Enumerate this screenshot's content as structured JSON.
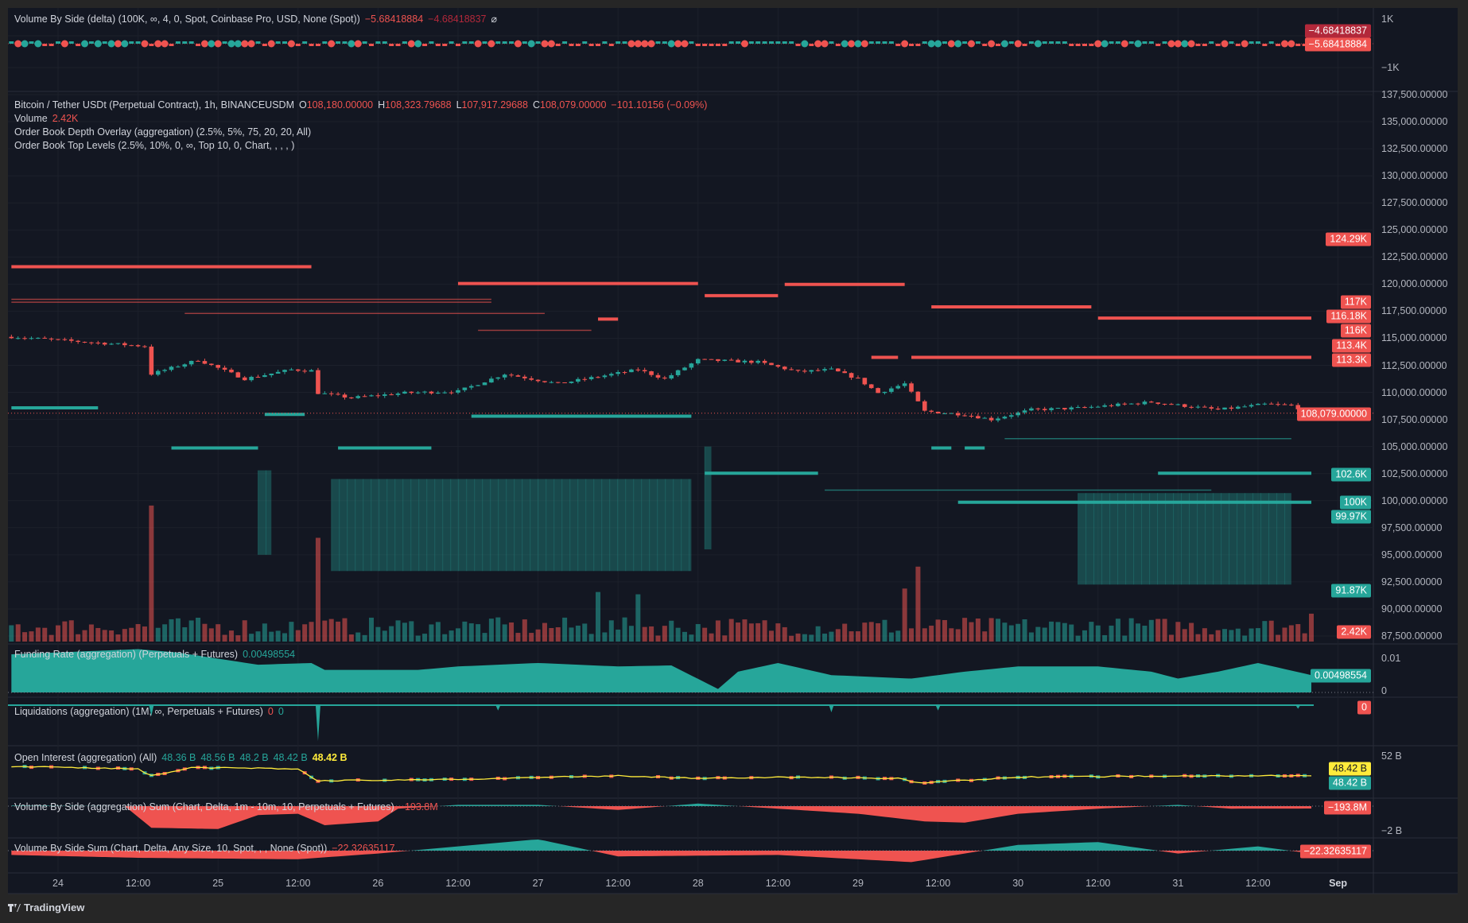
{
  "colors": {
    "up": "#26a69a",
    "down": "#ef5350",
    "dark_red": "#b2283a",
    "yellow": "#ffeb3b",
    "bg": "#131722",
    "frame": "#262626"
  },
  "top_pane": {
    "title": "Volume By Side (delta) (100K, ∞, 4, 0, Spot, Coinbase Pro, USD, None (Spot))",
    "value1": "−5.68418884",
    "value2": "−4.68418837",
    "icon": "empty-set-icon",
    "icon_glyph": "⌀",
    "axis": [
      "1K",
      "−1K"
    ],
    "badges": [
      "−4.68418837",
      "−5.68418884"
    ]
  },
  "main": {
    "symbol": "Bitcoin / Tether USDt (Perpetual Contract), 1h, BINANCEUSDM",
    "o_label": "O",
    "o": "108,180.00000",
    "h_label": "H",
    "h": "108,323.79688",
    "l_label": "L",
    "l": "107,917.29688",
    "c_label": "C",
    "c": "108,079.00000",
    "change": "−101.10156 (−0.09%)",
    "volume_label": "Volume",
    "volume": "2.42K",
    "indicators": [
      "Order Book Depth Overlay (aggregation) (2.5%, 5%, 75, 20, 20, All)",
      "Order Book Top Levels (2.5%, 10%, 0, ∞, Top 10, 0, Chart, , , , )"
    ],
    "price_axis": [
      "137,500.00000",
      "135,000.00000",
      "132,500.00000",
      "130,000.00000",
      "127,500.00000",
      "125,000.00000",
      "122,500.00000",
      "120,000.00000",
      "117,500.00000",
      "115,000.00000",
      "112,500.00000",
      "110,000.00000",
      "107,500.00000",
      "105,000.00000",
      "102,500.00000",
      "100,000.00000",
      "97,500.00000",
      "95,000.00000",
      "92,500.00000",
      "90,000.00000",
      "87,500.00000"
    ],
    "badges_red": [
      "124.29K",
      "117K",
      "116.18K",
      "116K",
      "113.4K",
      "113.3K"
    ],
    "last_price": "108,079.00000",
    "badges_teal": [
      "102.6K",
      "100K",
      "99.97K",
      "91.87K"
    ],
    "volume_badge": "2.42K",
    "price_path": [
      [
        "23 17:00",
        115130
      ],
      [
        "24 13:00",
        114270
      ],
      [
        "24 14:00",
        111700
      ],
      [
        "24 21:00",
        113000
      ],
      [
        "25 04:00",
        111250
      ],
      [
        "25 11:00",
        112100
      ],
      [
        "25 14:00",
        112000
      ],
      [
        "25 15:00",
        109950
      ],
      [
        "25 20:00",
        109500
      ],
      [
        "26 04:00",
        109950
      ],
      [
        "26 12:00",
        110100
      ],
      [
        "26 19:00",
        111700
      ],
      [
        "27 03:00",
        110800
      ],
      [
        "27 15:00",
        112100
      ],
      [
        "27 19:00",
        111250
      ],
      [
        "28 00:00",
        113000
      ],
      [
        "28 09:00",
        112800
      ],
      [
        "28 15:00",
        111900
      ],
      [
        "28 20:00",
        112100
      ],
      [
        "29 00:00",
        111250
      ],
      [
        "29 03:00",
        109950
      ],
      [
        "29 07:00",
        110800
      ],
      [
        "29 10:00",
        108250
      ],
      [
        "29 16:00",
        107950
      ],
      [
        "29 20:00",
        107500
      ],
      [
        "30 02:00",
        108400
      ],
      [
        "30 09:00",
        108550
      ],
      [
        "30 20:00",
        109100
      ],
      [
        "31 06:00",
        108400
      ],
      [
        "31 13:00",
        108900
      ],
      [
        "31 17:00",
        108800
      ],
      [
        "31 20:00",
        108079
      ]
    ],
    "last_candle": {
      "open": 108180,
      "high": 108323.79688,
      "low": 107917.29688,
      "close": 108079
    },
    "volume_spikes_k": [
      [
        "24 14:00",
        11.8,
        "down"
      ],
      [
        "25 15:00",
        9.0,
        "down"
      ],
      [
        "27 09:00",
        4.3,
        "up"
      ],
      [
        "27 15:00",
        4.1,
        "up"
      ],
      [
        "29 07:00",
        4.6,
        "down"
      ],
      [
        "29 09:00",
        6.5,
        "down"
      ],
      [
        "31 20:00",
        2.42,
        "down"
      ]
    ],
    "order_levels": [
      {
        "side": "ask",
        "weight": "major",
        "price": 121600,
        "from": "23 17:00",
        "to": "25 14:00"
      },
      {
        "side": "ask",
        "weight": "major",
        "price": 120050,
        "from": "26 12:00",
        "to": "28 00:00"
      },
      {
        "side": "ask",
        "weight": "major",
        "price": 118930,
        "from": "28 01:00",
        "to": "28 12:00"
      },
      {
        "side": "ask",
        "weight": "major",
        "price": 119970,
        "from": "28 13:00",
        "to": "29 07:00"
      },
      {
        "side": "ask",
        "weight": "major",
        "price": 117900,
        "from": "29 11:00",
        "to": "30 11:00"
      },
      {
        "side": "ask",
        "weight": "major",
        "price": 116860,
        "from": "30 12:00",
        "to": "31 20:00"
      },
      {
        "side": "ask",
        "weight": "major",
        "price": 113230,
        "from": "29 08:00",
        "to": "31 20:00"
      },
      {
        "side": "ask",
        "weight": "major",
        "price": 113230,
        "from": "29 02:00",
        "to": "29 06:00"
      },
      {
        "side": "ask",
        "weight": "major",
        "price": 116770,
        "from": "27 09:00",
        "to": "27 12:00"
      },
      {
        "side": "ask",
        "weight": "minor",
        "price": 118590,
        "from": "23 17:00",
        "to": "26 17:00"
      },
      {
        "side": "ask",
        "weight": "minor",
        "price": 118330,
        "from": "23 17:00",
        "to": "26 17:00"
      },
      {
        "side": "ask",
        "weight": "minor",
        "price": 117290,
        "from": "24 19:00",
        "to": "27 01:00"
      },
      {
        "side": "ask",
        "weight": "minor",
        "price": 115730,
        "from": "26 15:00",
        "to": "27 08:00"
      },
      {
        "side": "bid",
        "weight": "major",
        "price": 108570,
        "from": "23 17:00",
        "to": "24 06:00"
      },
      {
        "side": "bid",
        "weight": "major",
        "price": 107970,
        "from": "25 07:00",
        "to": "25 13:00"
      },
      {
        "side": "bid",
        "weight": "major",
        "price": 107800,
        "from": "26 14:00",
        "to": "27 23:00"
      },
      {
        "side": "bid",
        "weight": "major",
        "price": 104860,
        "from": "24 17:00",
        "to": "25 06:00"
      },
      {
        "side": "bid",
        "weight": "major",
        "price": 104860,
        "from": "25 18:00",
        "to": "26 08:00"
      },
      {
        "side": "bid",
        "weight": "major",
        "price": 104860,
        "from": "29 11:00",
        "to": "29 14:00"
      },
      {
        "side": "bid",
        "weight": "major",
        "price": 104860,
        "from": "29 16:00",
        "to": "29 19:00"
      },
      {
        "side": "bid",
        "weight": "major",
        "price": 102530,
        "from": "28 01:00",
        "to": "28 18:00"
      },
      {
        "side": "bid",
        "weight": "major",
        "price": 102530,
        "from": "30 21:00",
        "to": "31 20:00"
      },
      {
        "side": "bid",
        "weight": "major",
        "price": 99850,
        "from": "29 15:00",
        "to": "31 20:00"
      },
      {
        "side": "bid",
        "weight": "minor",
        "price": 100970,
        "from": "28 19:00",
        "to": "31 05:00"
      },
      {
        "side": "bid",
        "weight": "minor",
        "price": 105730,
        "from": "29 22:00",
        "to": "31 17:00"
      }
    ],
    "depth_zones": [
      {
        "from": "25 17:00",
        "to": "27 23:00",
        "top": 102000,
        "bottom": 93500
      },
      {
        "from": "25 06:00",
        "to": "25 08:00",
        "top": 102800,
        "bottom": 95000
      },
      {
        "from": "28 01:00",
        "to": "28 02:00",
        "top": 105000,
        "bottom": 95500
      },
      {
        "from": "30 09:00",
        "to": "31 17:00",
        "top": 100700,
        "bottom": 92250
      }
    ]
  },
  "funding": {
    "title": "Funding Rate (aggregation) (Perpetuals + Futures)",
    "value": "0.00498554",
    "axis": [
      "0.01",
      "0"
    ],
    "badge": "0.00498554",
    "path": [
      [
        "23 17:00",
        0.011
      ],
      [
        "24 12:00",
        0.0125
      ],
      [
        "24 18:00",
        0.0115
      ],
      [
        "25 06:00",
        0.008
      ],
      [
        "25 14:00",
        0.0085
      ],
      [
        "25 16:00",
        0.0065
      ],
      [
        "26 06:00",
        0.0065
      ],
      [
        "26 12:00",
        0.0075
      ],
      [
        "27 00:00",
        0.0085
      ],
      [
        "27 12:00",
        0.0075
      ],
      [
        "27 20:00",
        0.0078
      ],
      [
        "28 03:00",
        0.001
      ],
      [
        "28 06:00",
        0.006
      ],
      [
        "28 12:00",
        0.0085
      ],
      [
        "28 20:00",
        0.005
      ],
      [
        "29 08:00",
        0.004
      ],
      [
        "29 16:00",
        0.006
      ],
      [
        "30 00:00",
        0.0075
      ],
      [
        "30 12:00",
        0.0075
      ],
      [
        "30 20:00",
        0.006
      ],
      [
        "31 00:00",
        0.004
      ],
      [
        "31 06:00",
        0.006
      ],
      [
        "31 12:00",
        0.0085
      ],
      [
        "31 20:00",
        0.005
      ]
    ]
  },
  "liquidations": {
    "title": "Liquidations (aggregation) (1M, ∞, Perpetuals + Futures)",
    "value_long": "0",
    "value_short": "0",
    "badge": "0",
    "spikes": [
      [
        "24 14:00",
        0.3
      ],
      [
        "25 15:00",
        1.0
      ],
      [
        "26 18:00",
        0.15
      ],
      [
        "28 20:00",
        0.2
      ],
      [
        "29 12:00",
        0.15
      ],
      [
        "31 18:00",
        0.1
      ]
    ]
  },
  "open_interest": {
    "title": "Open Interest (aggregation) (All)",
    "values": [
      "48.36 B",
      "48.56 B",
      "48.2 B",
      "48.42 B"
    ],
    "close": "48.42 B",
    "axis": [
      "52 B"
    ],
    "badge_yellow": "48.42 B",
    "badge_teal": "48.42 B",
    "path": [
      [
        "23 17:00",
        48.8
      ],
      [
        "24 12:00",
        48.7
      ],
      [
        "24 14:00",
        48.4
      ],
      [
        "24 20:00",
        48.75
      ],
      [
        "25 12:00",
        48.7
      ],
      [
        "25 15:00",
        48.2
      ],
      [
        "26 12:00",
        48.25
      ],
      [
        "27 00:00",
        48.35
      ],
      [
        "27 12:00",
        48.4
      ],
      [
        "28 00:00",
        48.3
      ],
      [
        "28 12:00",
        48.35
      ],
      [
        "29 06:00",
        48.3
      ],
      [
        "29 09:00",
        48.1
      ],
      [
        "30 00:00",
        48.35
      ],
      [
        "31 00:00",
        48.4
      ],
      [
        "31 20:00",
        48.42
      ]
    ]
  },
  "vbs_agg": {
    "title": "Volume By Side (aggregation) Sum (Chart, Delta, 1m - 10m, 10, Perpetuals + Futures)",
    "value": "−193.8M",
    "axis": [
      "−2 B"
    ],
    "badge": "−193.8M",
    "path": [
      [
        "23 17:00",
        0.05
      ],
      [
        "24 10:00",
        0
      ],
      [
        "24 14:00",
        -1.7
      ],
      [
        "25 00:00",
        -1.8
      ],
      [
        "25 06:00",
        -0.7
      ],
      [
        "25 12:00",
        -0.6
      ],
      [
        "25 16:00",
        -1.5
      ],
      [
        "26 00:00",
        -1.2
      ],
      [
        "26 03:00",
        -0.2
      ],
      [
        "26 12:00",
        0.1
      ],
      [
        "27 00:00",
        0.1
      ],
      [
        "27 12:00",
        -0.3
      ],
      [
        "28 00:00",
        0.2
      ],
      [
        "28 12:00",
        -0.2
      ],
      [
        "29 00:00",
        -0.6
      ],
      [
        "29 10:00",
        -1.2
      ],
      [
        "29 16:00",
        -1.3
      ],
      [
        "30 00:00",
        -0.6
      ],
      [
        "30 12:00",
        -0.2
      ],
      [
        "31 00:00",
        0.1
      ],
      [
        "31 08:00",
        -0.2
      ],
      [
        "31 20:00",
        -0.19
      ]
    ]
  },
  "vbs_sum": {
    "title": "Volume By Side Sum (Chart, Delta, Any Size, 10, Spot, , , None (Spot))",
    "value": "−22.32635117",
    "badge": "−22.32635117",
    "path": [
      [
        "23 17:00",
        -0.3
      ],
      [
        "24 12:00",
        -0.5
      ],
      [
        "25 12:00",
        -0.6
      ],
      [
        "26 00:00",
        -0.2
      ],
      [
        "26 12:00",
        0.3
      ],
      [
        "27 00:00",
        0.8
      ],
      [
        "27 06:00",
        0.2
      ],
      [
        "27 12:00",
        -0.4
      ],
      [
        "28 12:00",
        -0.3
      ],
      [
        "29 08:00",
        -0.8
      ],
      [
        "30 00:00",
        0.4
      ],
      [
        "30 12:00",
        0.6
      ],
      [
        "31 00:00",
        -0.2
      ],
      [
        "31 12:00",
        0.3
      ],
      [
        "31 20:00",
        -0.2
      ]
    ]
  },
  "time_axis": [
    "24",
    "12:00",
    "25",
    "12:00",
    "26",
    "12:00",
    "27",
    "12:00",
    "28",
    "12:00",
    "29",
    "12:00",
    "30",
    "12:00",
    "31",
    "12:00",
    "Sep"
  ],
  "footer": {
    "brand": "TradingView",
    "logo_text": "TV"
  }
}
